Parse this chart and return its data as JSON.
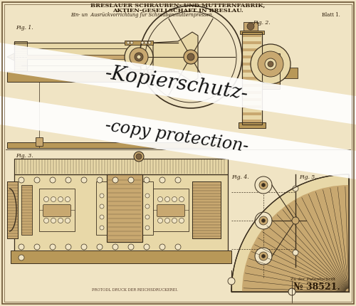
{
  "bg_color": "#f0e4c4",
  "border_color": "#8b7355",
  "title_line1": "BRESLAUER SCHRAUBEN- UND MUTTERNFABRIK,",
  "title_line2": "AKTIEN-GESELLSCHAFT IN BRESLAU.",
  "subtitle": "Ein- un  Ausrückvorrichtung für Schraubenmutternpressen.",
  "blatt": "Blatt 1.",
  "patent_no": "№ 38521.",
  "footer": "PROTODL DRUCK DER REICHSDRUCKEREI.",
  "patent_ref": "Zu der Patentschrift",
  "watermark_line1": "-Kopierschutz-",
  "watermark_line2": "-copy protection-",
  "drawing_color": "#3a2e1e",
  "shading_color": "#c8a870",
  "dark_shading": "#7a6040",
  "light_tan": "#e8d8a8",
  "medium_tan": "#b89858",
  "mid_bg": "#ddc890"
}
